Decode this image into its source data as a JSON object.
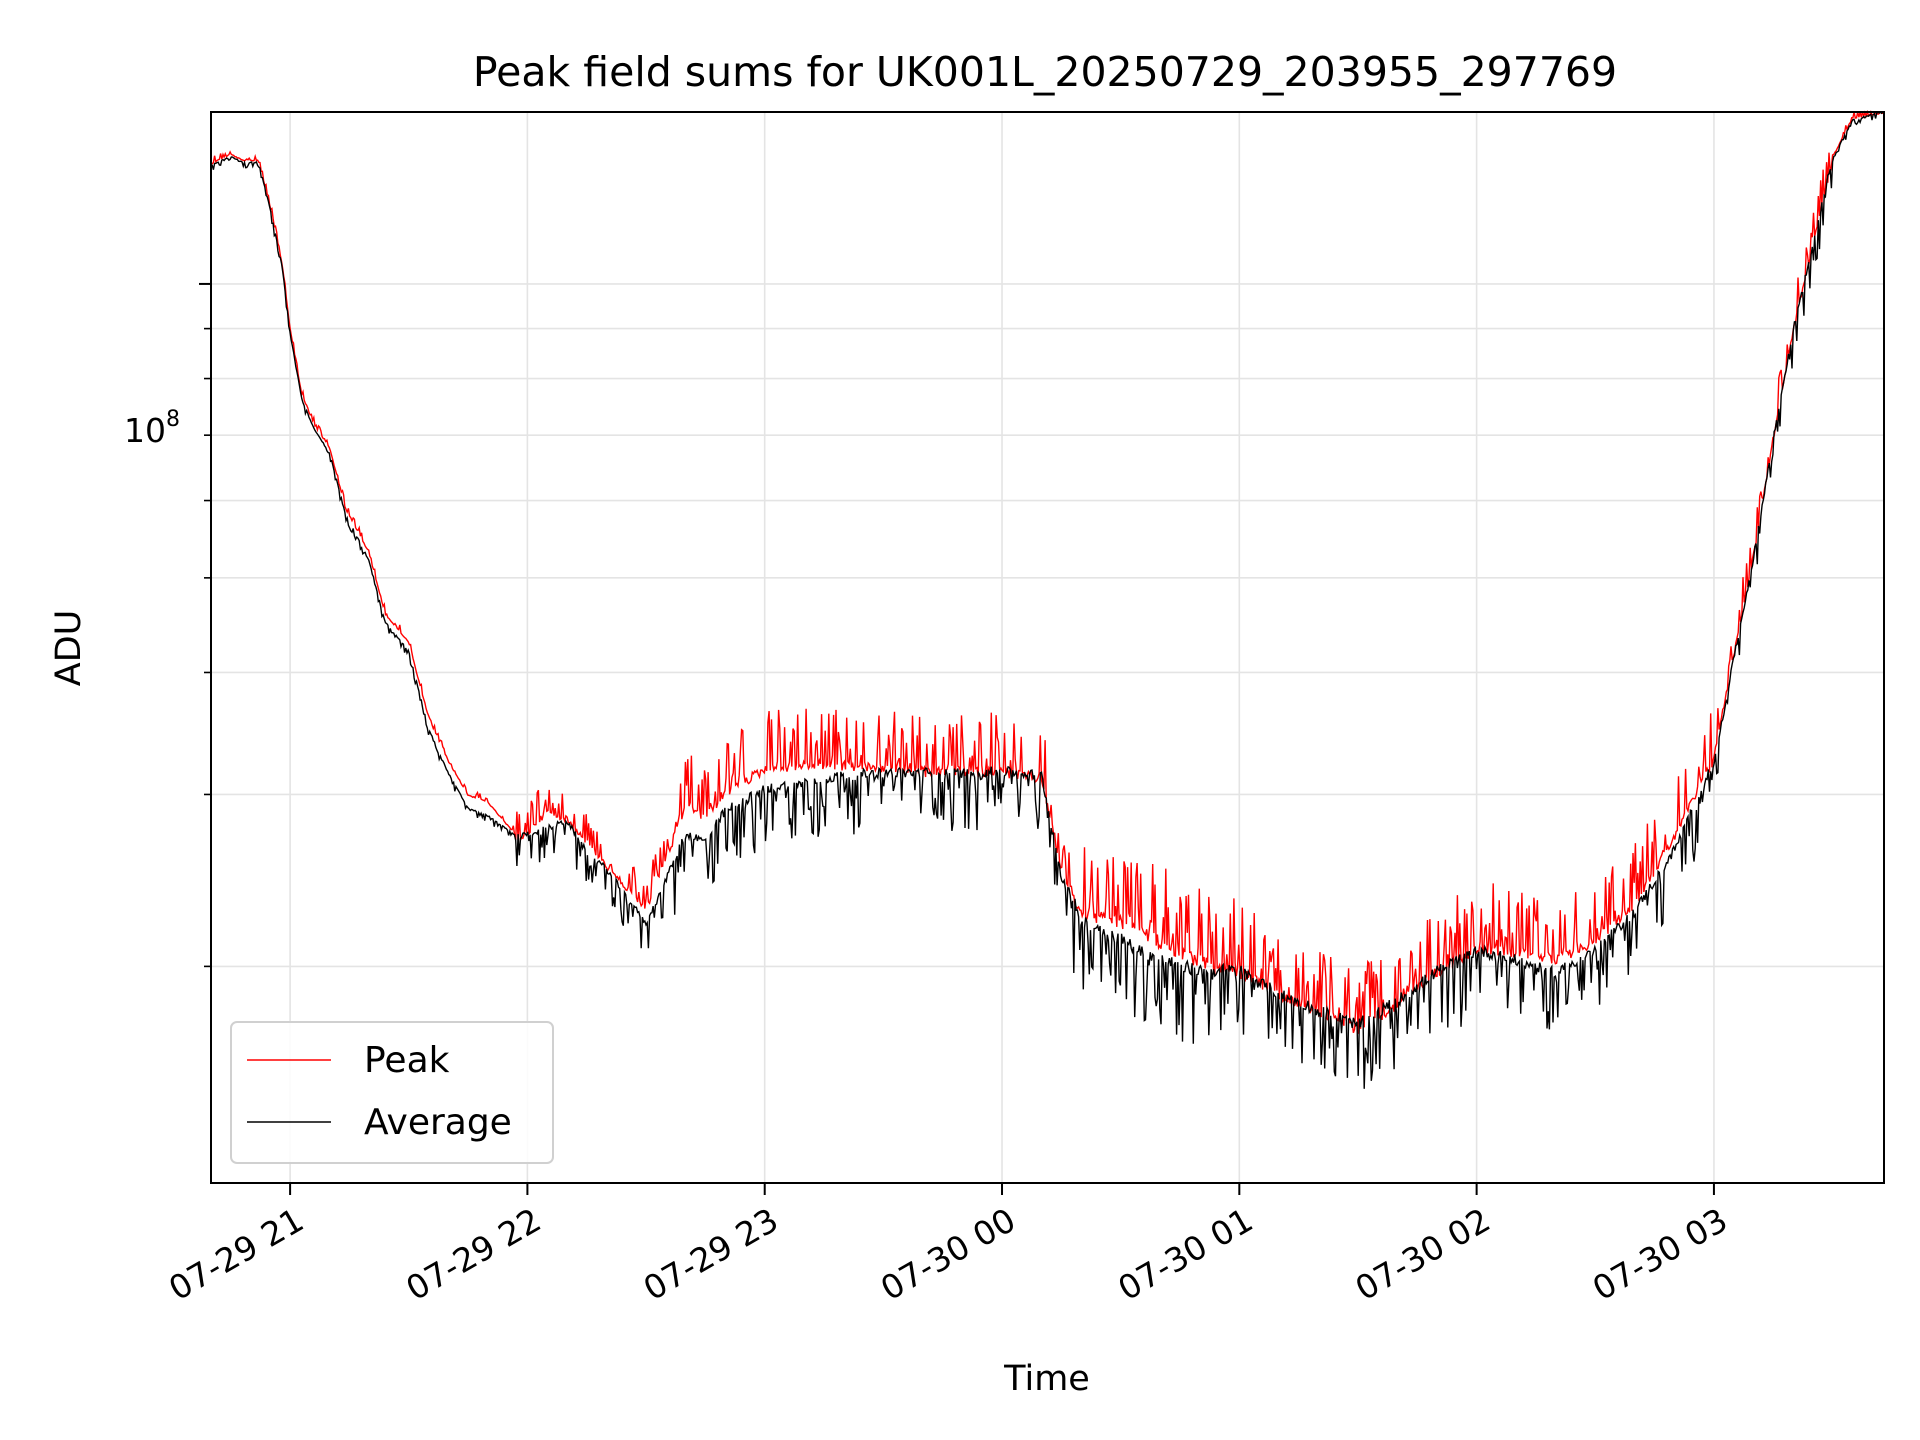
{
  "chart_data": {
    "type": "line",
    "title": "Peak field sums for UK001L_20250729_203955_297769",
    "xlabel": "Time",
    "ylabel": "ADU",
    "y_scale": "log",
    "y_tick_label": {
      "base": "10",
      "exponent": "8"
    },
    "ylim": [
      12000000.0,
      150000000.0
    ],
    "xlim": [
      "2025-07-29 20:40",
      "2025-07-30 03:43"
    ],
    "x_tick_labels": [
      "07-29 21",
      "07-29 22",
      "07-29 23",
      "07-30 00",
      "07-30 01",
      "07-30 02",
      "07-30 03"
    ],
    "x_tick_times": [
      "2025-07-29 21:00",
      "2025-07-29 22:00",
      "2025-07-29 23:00",
      "2025-07-30 00:00",
      "2025-07-30 01:00",
      "2025-07-30 02:00",
      "2025-07-30 03:00"
    ],
    "grid": true,
    "legend_position": "lower-left",
    "series": [
      {
        "name": "Peak",
        "color": "#ff0000"
      },
      {
        "name": "Average",
        "color": "#000000"
      }
    ],
    "x": [
      "2025-07-29 20:40",
      "2025-07-29 20:45",
      "2025-07-29 20:48",
      "2025-07-29 20:52",
      "2025-07-29 20:55",
      "2025-07-29 20:58",
      "2025-07-29 21:00",
      "2025-07-29 21:03",
      "2025-07-29 21:06",
      "2025-07-29 21:10",
      "2025-07-29 21:14",
      "2025-07-29 21:17",
      "2025-07-29 21:20",
      "2025-07-29 21:24",
      "2025-07-29 21:30",
      "2025-07-29 21:35",
      "2025-07-29 21:40",
      "2025-07-29 21:45",
      "2025-07-29 21:50",
      "2025-07-29 21:58",
      "2025-07-29 22:05",
      "2025-07-29 22:10",
      "2025-07-29 22:15",
      "2025-07-29 22:20",
      "2025-07-29 22:30",
      "2025-07-29 22:40",
      "2025-07-29 22:45",
      "2025-07-29 22:50",
      "2025-07-29 23:00",
      "2025-07-29 23:10",
      "2025-07-29 23:20",
      "2025-07-29 23:30",
      "2025-07-29 23:40",
      "2025-07-29 23:50",
      "2025-07-30 00:00",
      "2025-07-30 00:10",
      "2025-07-30 00:15",
      "2025-07-30 00:20",
      "2025-07-30 00:30",
      "2025-07-30 00:40",
      "2025-07-30 00:50",
      "2025-07-30 01:00",
      "2025-07-30 01:10",
      "2025-07-30 01:20",
      "2025-07-30 01:30",
      "2025-07-30 01:40",
      "2025-07-30 01:50",
      "2025-07-30 02:00",
      "2025-07-30 02:10",
      "2025-07-30 02:20",
      "2025-07-30 02:30",
      "2025-07-30 02:40",
      "2025-07-30 02:50",
      "2025-07-30 03:00",
      "2025-07-30 03:05",
      "2025-07-30 03:10",
      "2025-07-30 03:15",
      "2025-07-30 03:20",
      "2025-07-30 03:25",
      "2025-07-30 03:30",
      "2025-07-30 03:35",
      "2025-07-30 03:43"
    ],
    "peak": [
      133000000.0,
      136000000.0,
      134000000.0,
      134000000.0,
      120000000.0,
      105000000.0,
      90000000.0,
      77000000.0,
      72000000.0,
      68000000.0,
      59000000.0,
      56000000.0,
      53000000.0,
      46000000.0,
      43000000.0,
      36000000.0,
      32500000.0,
      30000000.0,
      29500000.0,
      27000000.0,
      29000000.0,
      28500000.0,
      27000000.0,
      25500000.0,
      23000000.0,
      29500000.0,
      28800000.0,
      30500000.0,
      32200000.0,
      32500000.0,
      32500000.0,
      32300000.0,
      32000000.0,
      32000000.0,
      32000000.0,
      31500000.0,
      25500000.0,
      23000000.0,
      22500000.0,
      21500000.0,
      20500000.0,
      20000000.0,
      19000000.0,
      18200000.0,
      17500000.0,
      18500000.0,
      20000000.0,
      21200000.0,
      21000000.0,
      20500000.0,
      21500000.0,
      23500000.0,
      27500000.0,
      33000000.0,
      42000000.0,
      53000000.0,
      70000000.0,
      90000000.0,
      110000000.0,
      135000000.0,
      148000000.0,
      150000000.0
    ],
    "average": [
      132000000.0,
      135000000.0,
      133000000.0,
      133000000.0,
      119000000.0,
      104000000.0,
      89000000.0,
      76000000.0,
      71000000.0,
      67000000.0,
      58000000.0,
      55000000.0,
      52000000.0,
      45000000.0,
      42000000.0,
      35000000.0,
      31500000.0,
      29000000.0,
      28500000.0,
      27000000.0,
      27500000.0,
      28000000.0,
      26000000.0,
      25000000.0,
      22000000.0,
      27000000.0,
      26500000.0,
      28500000.0,
      30000000.0,
      30500000.0,
      31000000.0,
      31200000.0,
      31200000.0,
      31200000.0,
      31300000.0,
      31000000.0,
      24500000.0,
      22000000.0,
      21000000.0,
      20000000.0,
      19500000.0,
      19500000.0,
      18500000.0,
      17800000.0,
      17200000.0,
      18200000.0,
      19500000.0,
      20500000.0,
      20000000.0,
      19500000.0,
      20500000.0,
      22500000.0,
      26000000.0,
      32000000.0,
      41000000.0,
      52000000.0,
      69000000.0,
      89000000.0,
      109000000.0,
      134000000.0,
      147000000.0,
      150000000.0
    ]
  }
}
